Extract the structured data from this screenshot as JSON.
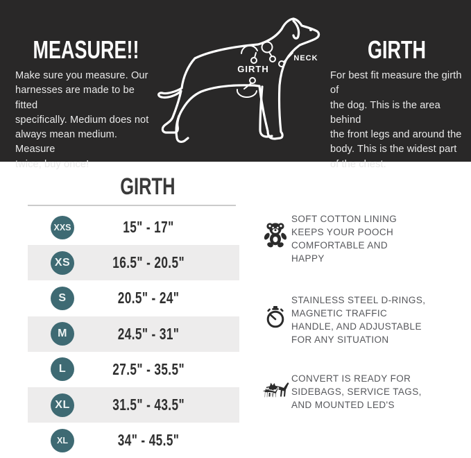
{
  "hero": {
    "left": {
      "title": "MEASURE!!",
      "body": "Make sure you measure. Our\nharnesses are made to be fitted\nspecifically. Medium does not\nalways mean medium. Measure\ntwice, buy once!"
    },
    "right": {
      "title": "GIRTH",
      "body": "For best fit measure the girth of\nthe dog. This is the area behind\nthe front legs and around the\nbody. This is the widest part\nof the chest."
    },
    "dog_labels": {
      "girth": "GIRTH",
      "neck": "NECK"
    }
  },
  "table": {
    "title": "GIRTH",
    "columns": [
      "size",
      "girth_range"
    ],
    "rows": [
      {
        "size": "XXS",
        "range": "15\" - 17\""
      },
      {
        "size": "XS",
        "range": "16.5\" - 20.5\""
      },
      {
        "size": "S",
        "range": "20.5\" - 24\""
      },
      {
        "size": "M",
        "range": "24.5\" - 31\""
      },
      {
        "size": "L",
        "range": "27.5\" - 35.5\""
      },
      {
        "size": "XL",
        "range": "31.5\" - 43.5\""
      },
      {
        "size": "XL",
        "range": "34\" - 45.5\""
      }
    ]
  },
  "features": [
    {
      "icon": "teddy-bear-icon",
      "text": "SOFT COTTON LINING\nKEEPS YOUR POOCH\nCOMFORTABLE AND\nHAPPY"
    },
    {
      "icon": "stopwatch-icon",
      "text": "STAINLESS STEEL D-RINGS,\nMAGNETIC TRAFFIC\nHANDLE, AND  ADJUSTABLE\nFOR ANY SITUATION"
    },
    {
      "icon": "dogs-icon",
      "text": "CONVERT IS READY FOR\nSIDEBAGS, SERVICE TAGS,\nAND  MOUNTED LED'S"
    }
  ],
  "colors": {
    "hero_bg": "#292828",
    "badge_teal": "#3e6a73",
    "row_alt": "#edecec",
    "feature_text": "#56575b",
    "table_text": "#2f2f2f"
  }
}
